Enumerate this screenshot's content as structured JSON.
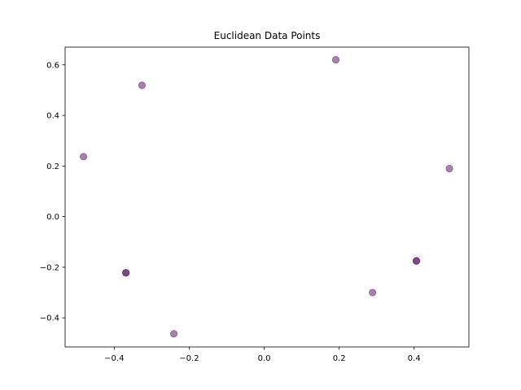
{
  "chart_data": {
    "type": "scatter",
    "title": "Euclidean Data Points",
    "xlabel": "",
    "ylabel": "",
    "xlim": [
      -0.531,
      0.546
    ],
    "ylim": [
      -0.515,
      0.67
    ],
    "xticks": [
      -0.4,
      -0.2,
      0.0,
      0.2,
      0.4
    ],
    "xtick_labels": [
      "−0.4",
      "−0.2",
      "0.0",
      "0.2",
      "0.4"
    ],
    "yticks": [
      -0.4,
      -0.2,
      0.0,
      0.2,
      0.4,
      0.6
    ],
    "ytick_labels": [
      "−0.4",
      "−0.2",
      "0.0",
      "0.2",
      "0.4",
      "0.6"
    ],
    "grid": false,
    "legend": "none",
    "marker_color": "#5b1a66",
    "marker_alpha": 0.55,
    "points": [
      {
        "x": -0.482,
        "y": 0.237
      },
      {
        "x": -0.326,
        "y": 0.519
      },
      {
        "x": 0.191,
        "y": 0.62
      },
      {
        "x": 0.494,
        "y": 0.19
      },
      {
        "x": 0.406,
        "y": -0.175
      },
      {
        "x": 0.406,
        "y": -0.175
      },
      {
        "x": 0.289,
        "y": -0.3
      },
      {
        "x": -0.241,
        "y": -0.463
      },
      {
        "x": -0.369,
        "y": -0.222
      },
      {
        "x": -0.369,
        "y": -0.222
      }
    ]
  }
}
